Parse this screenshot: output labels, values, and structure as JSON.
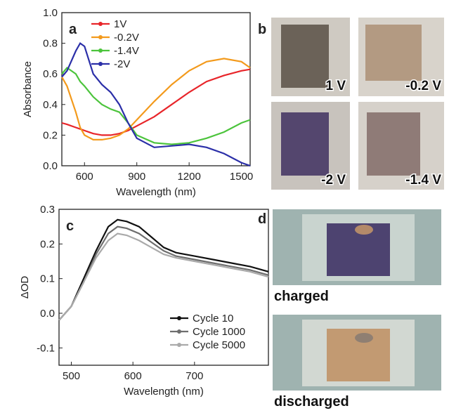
{
  "chart_data": [
    {
      "type": "line",
      "panel": "a",
      "xlabel": "Wavelength (nm)",
      "ylabel": "Absorbance",
      "xlim": [
        470,
        1550
      ],
      "xticks": [
        600,
        900,
        1200,
        1500
      ],
      "ylim": [
        0,
        1
      ],
      "yticks": [
        {
          "value": 0,
          "label": "0.0"
        },
        0.2,
        0.4,
        0.6,
        0.8,
        {
          "value": 1,
          "label": "1.0"
        }
      ],
      "legend": "upper left",
      "x": [
        470,
        500,
        550,
        575,
        600,
        650,
        700,
        750,
        800,
        850,
        900,
        1000,
        1100,
        1200,
        1300,
        1400,
        1500,
        1550
      ],
      "series": [
        {
          "name": "1V",
          "color": "#e8252a",
          "values": [
            0.28,
            0.27,
            0.25,
            0.24,
            0.23,
            0.21,
            0.2,
            0.2,
            0.21,
            0.23,
            0.26,
            0.32,
            0.4,
            0.48,
            0.55,
            0.59,
            0.62,
            0.63
          ]
        },
        {
          "name": "-0.2V",
          "color": "#f39a1c",
          "values": [
            0.58,
            0.52,
            0.35,
            0.25,
            0.2,
            0.17,
            0.17,
            0.18,
            0.2,
            0.24,
            0.3,
            0.42,
            0.53,
            0.62,
            0.68,
            0.7,
            0.68,
            0.64
          ]
        },
        {
          "name": "-1.4V",
          "color": "#4cc43c",
          "values": [
            0.6,
            0.64,
            0.6,
            0.55,
            0.52,
            0.45,
            0.4,
            0.37,
            0.35,
            0.28,
            0.2,
            0.15,
            0.14,
            0.15,
            0.18,
            0.22,
            0.28,
            0.3
          ]
        },
        {
          "name": "-2V",
          "color": "#2b2fa8",
          "values": [
            0.58,
            0.62,
            0.75,
            0.8,
            0.78,
            0.6,
            0.53,
            0.48,
            0.4,
            0.28,
            0.18,
            0.12,
            0.13,
            0.14,
            0.12,
            0.08,
            0.02,
            0
          ]
        }
      ]
    },
    {
      "type": "line",
      "panel": "c",
      "xlabel": "Wavelength (nm)",
      "ylabel": "ΔOD",
      "xlim": [
        480,
        820
      ],
      "xticks": [
        500,
        600,
        700
      ],
      "ylim": [
        -0.15,
        0.3
      ],
      "yticks": [
        -0.1,
        {
          "value": 0,
          "label": "0.0"
        },
        0.1,
        0.2,
        0.3
      ],
      "legend": "lower right",
      "x": [
        480,
        500,
        520,
        540,
        560,
        575,
        590,
        610,
        630,
        650,
        670,
        700,
        730,
        760,
        790,
        820
      ],
      "series": [
        {
          "name": "Cycle 10",
          "color": "#111111",
          "values": [
            -0.02,
            0.02,
            0.1,
            0.18,
            0.25,
            0.27,
            0.265,
            0.25,
            0.22,
            0.19,
            0.175,
            0.165,
            0.155,
            0.145,
            0.135,
            0.12
          ]
        },
        {
          "name": "Cycle 1000",
          "color": "#6e6e6e",
          "values": [
            -0.02,
            0.02,
            0.09,
            0.17,
            0.23,
            0.25,
            0.245,
            0.23,
            0.205,
            0.18,
            0.165,
            0.155,
            0.145,
            0.135,
            0.125,
            0.11
          ]
        },
        {
          "name": "Cycle 5000",
          "color": "#aaaaaa",
          "values": [
            -0.02,
            0.02,
            0.09,
            0.16,
            0.21,
            0.23,
            0.225,
            0.21,
            0.19,
            0.17,
            0.16,
            0.15,
            0.14,
            0.13,
            0.12,
            0.105
          ]
        }
      ]
    }
  ],
  "panel_b": {
    "label": "b",
    "photos": [
      "1 V",
      "-0.2 V",
      "-2 V",
      "-1.4 V"
    ]
  },
  "panel_d": {
    "label": "d",
    "captions": [
      "charged",
      "discharged"
    ]
  }
}
